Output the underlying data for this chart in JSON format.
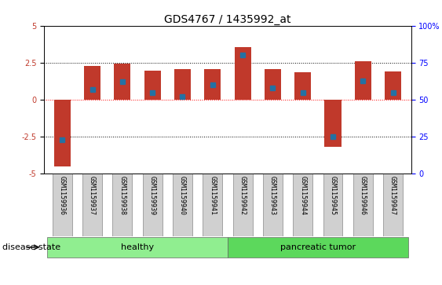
{
  "title": "GDS4767 / 1435992_at",
  "samples": [
    "GSM1159936",
    "GSM1159937",
    "GSM1159938",
    "GSM1159939",
    "GSM1159940",
    "GSM1159941",
    "GSM1159942",
    "GSM1159943",
    "GSM1159944",
    "GSM1159945",
    "GSM1159946",
    "GSM1159947"
  ],
  "transformed_count": [
    -4.5,
    2.3,
    2.45,
    1.95,
    2.05,
    2.05,
    3.55,
    2.05,
    1.85,
    -3.2,
    2.6,
    1.9
  ],
  "percentile_rank": [
    23,
    57,
    62,
    55,
    52,
    60,
    80,
    58,
    55,
    25,
    63,
    55
  ],
  "groups": {
    "healthy": [
      0,
      1,
      2,
      3,
      4,
      5
    ],
    "pancreatic tumor": [
      6,
      7,
      8,
      9,
      10,
      11
    ]
  },
  "ylim": [
    -5,
    5
  ],
  "yticks_left": [
    -5,
    -2.5,
    0,
    2.5,
    5
  ],
  "yticks_right_vals": [
    0,
    25,
    50,
    75,
    100
  ],
  "yticks_right_labels": [
    "0",
    "25",
    "50",
    "75",
    "100%"
  ],
  "hlines_dotted": [
    -2.5,
    2.5
  ],
  "bar_color": "#c0392b",
  "percentile_color": "#2471a3",
  "healthy_color": "#90EE90",
  "tumor_color": "#5CD85C",
  "bar_width": 0.55,
  "group_label_fontsize": 8,
  "title_fontsize": 10,
  "tick_fontsize": 7,
  "legend_fontsize": 7.5,
  "disease_state_fontsize": 8,
  "sample_label_fontsize": 6,
  "label_box_color": "#d0d0d0"
}
